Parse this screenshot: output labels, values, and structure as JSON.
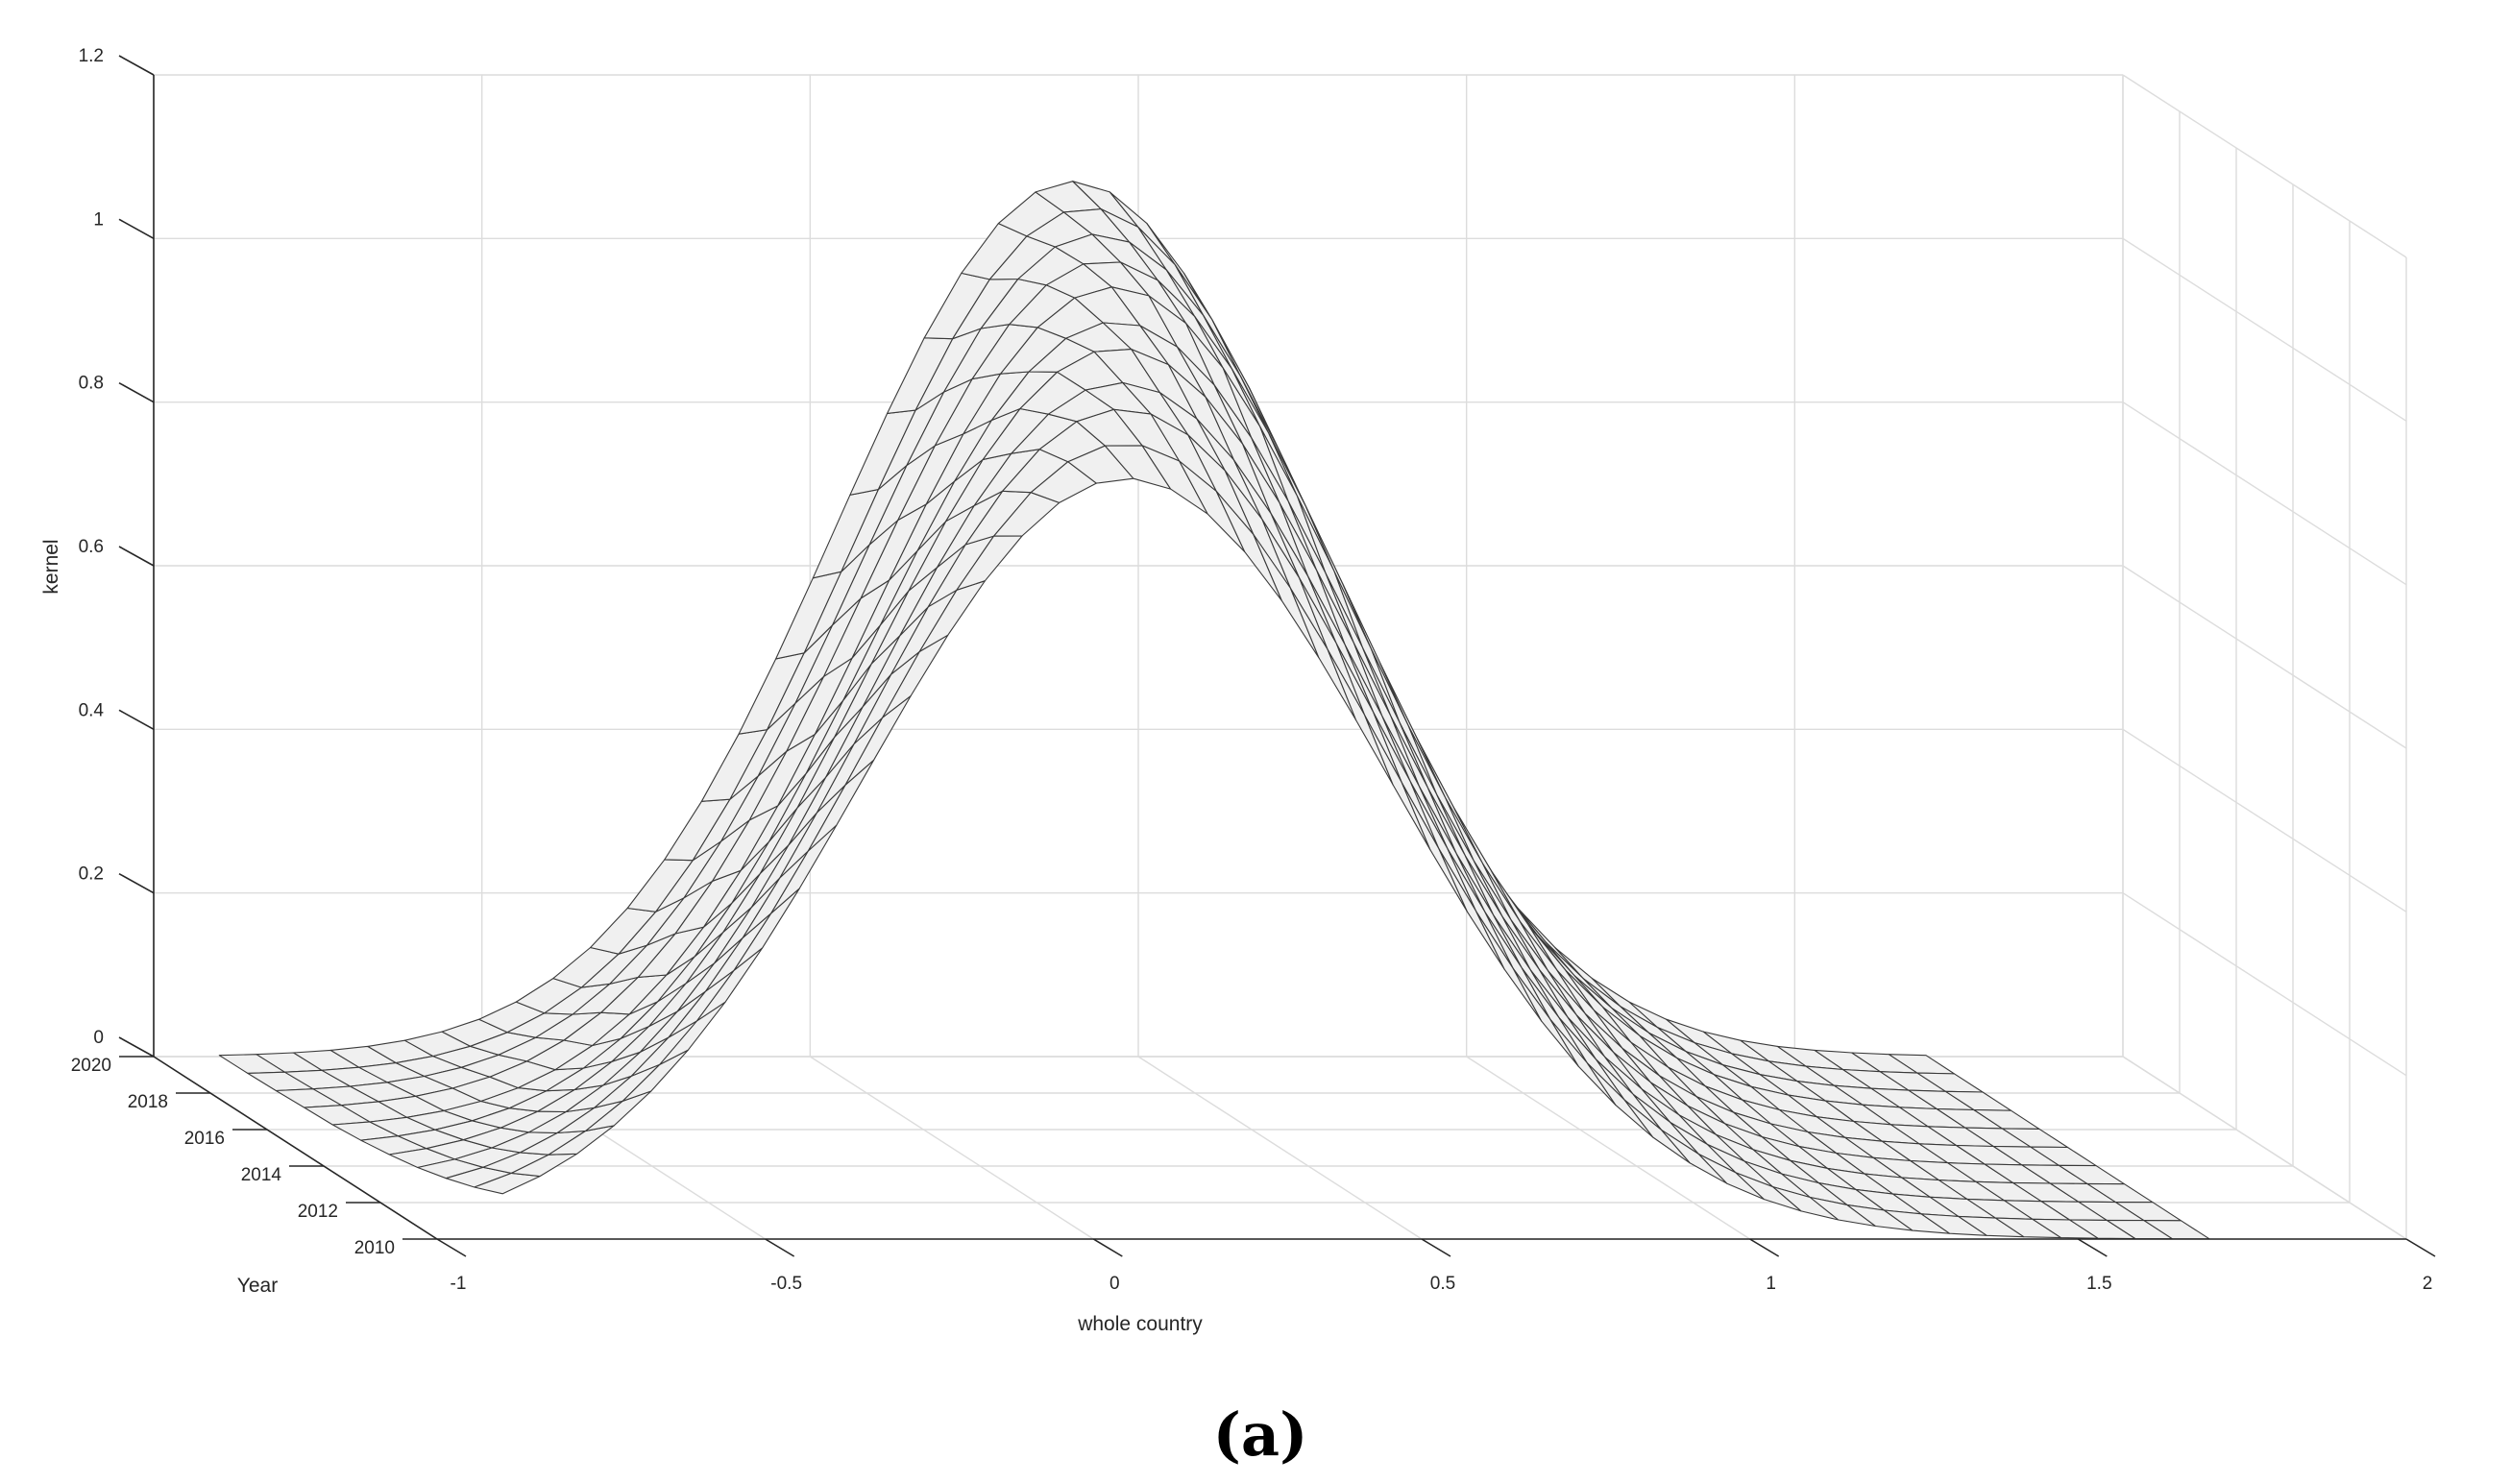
{
  "chart_data": {
    "type": "surface3d",
    "title": "",
    "xlabel": "whole country",
    "ylabel": "Year",
    "zlabel": "kernel",
    "xlim": [
      -1,
      2
    ],
    "ylim": [
      2010,
      2020
    ],
    "zlim": [
      0,
      1.2
    ],
    "x_ticks": [
      "-1",
      "-0.5",
      "0",
      "0.5",
      "1",
      "1.5",
      "2"
    ],
    "y_ticks": [
      "2010",
      "2012",
      "2014",
      "2016",
      "2018",
      "2020"
    ],
    "z_ticks": [
      "0",
      "0.2",
      "0.4",
      "0.6",
      "0.8",
      "1",
      "1.2"
    ],
    "grid": true,
    "surface_color": "#f0f0f0",
    "edge_color": "#3a3a3a",
    "years": [
      2010,
      2011,
      2012,
      2013,
      2014,
      2015,
      2016,
      2017,
      2018,
      2019,
      2020
    ],
    "density_peak_x": [
      0.05,
      0.09,
      0.13,
      0.17,
      0.21,
      0.25,
      0.29,
      0.32,
      0.35,
      0.38,
      0.4
    ],
    "density_peak_value": [
      0.93,
      0.95,
      0.97,
      0.98,
      1.0,
      1.01,
      1.03,
      1.04,
      1.05,
      1.06,
      1.07
    ],
    "density_spread": [
      0.4,
      0.395,
      0.39,
      0.385,
      0.38,
      0.375,
      0.37,
      0.37,
      0.365,
      0.36,
      0.36
    ]
  },
  "caption": "(a)"
}
